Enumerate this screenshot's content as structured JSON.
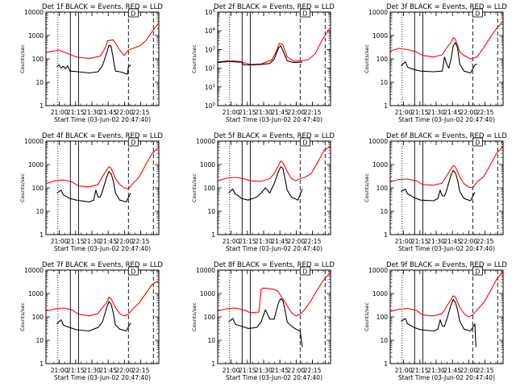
{
  "chart_data": {
    "type": "line",
    "yscale": "log",
    "ylabel": "Counts/sec",
    "xlabel": "Start Time (03-Jun-02 20:47:40)",
    "x_tick_labels": [
      "21:00",
      "21:15",
      "21:30",
      "21:45",
      "22:00",
      "22:15"
    ],
    "x_tick_minutes": [
      12.33,
      27.33,
      42.33,
      57.33,
      72.33,
      87.33
    ],
    "xlim_minutes": [
      0,
      104
    ],
    "legend_text": "BLACK = Events, RED = LLD",
    "annotation": "D",
    "vlines": [
      {
        "style": "dotted",
        "minutes": 11.0
      },
      {
        "style": "solid",
        "minutes": 22.5
      },
      {
        "style": "solid",
        "minutes": 30.0
      },
      {
        "style": "dashed",
        "minutes": 76.0
      },
      {
        "style": "dashed",
        "minutes": 99.0
      }
    ],
    "panels": [
      {
        "detector": "Det 1f",
        "ylim": [
          1,
          10000
        ],
        "ytick_labels": [
          "1",
          "10",
          "100",
          "1000",
          "10000"
        ],
        "series": [
          {
            "name": "LLD",
            "color": "#ff0000",
            "t": [
              0,
              12,
              28,
              40,
              50,
              54,
              57,
              62,
              68,
              72,
              76,
              80,
              86,
              92,
              98,
              104
            ],
            "values": [
              190,
              240,
              120,
              105,
              130,
              260,
              600,
              650,
              240,
              140,
              240,
              280,
              350,
              600,
              1500,
              3500
            ]
          },
          {
            "name": "Events",
            "color": "#000000",
            "t": [
              10,
              12,
              14,
              16,
              18,
              20,
              22,
              30,
              40,
              48,
              52,
              56,
              58,
              60,
              62,
              64,
              68,
              72,
              75,
              76,
              78
            ],
            "values": [
              45,
              55,
              40,
              48,
              38,
              50,
              30,
              28,
              25,
              28,
              50,
              180,
              380,
              350,
              100,
              30,
              28,
              25,
              22,
              45,
              55
            ]
          }
        ]
      },
      {
        "detector": "Det 2f",
        "ylim": [
          1,
          100000
        ],
        "ytick_labels": [
          "10^0",
          "10^1",
          "10^2",
          "10^3",
          "10^4",
          "10^5"
        ],
        "series": [
          {
            "name": "LLD",
            "color": "#ff0000",
            "t": [
              0,
              10,
              20,
              30,
              40,
              50,
              54,
              57,
              60,
              64,
              70,
              78,
              84,
              90,
              96,
              104
            ],
            "values": [
              220,
              250,
              230,
              160,
              170,
              280,
              800,
              2200,
              1800,
              400,
              240,
              250,
              300,
              600,
              3000,
              16000
            ]
          },
          {
            "name": "Events",
            "color": "#000000",
            "t": [
              0,
              10,
              20,
              22,
              24,
              30,
              40,
              48,
              52,
              56,
              58,
              60,
              64,
              70,
              78
            ],
            "values": [
              200,
              230,
              210,
              220,
              150,
              150,
              160,
              180,
              300,
              1200,
              1600,
              900,
              250,
              200,
              210
            ]
          }
        ]
      },
      {
        "detector": "Det 3f",
        "ylim": [
          1,
          10000
        ],
        "ytick_labels": [
          "1",
          "10",
          "100",
          "1000",
          "10000"
        ],
        "series": [
          {
            "name": "LLD",
            "color": "#ff0000",
            "t": [
              0,
              8,
              16,
              24,
              30,
              40,
              48,
              52,
              56,
              58,
              60,
              64,
              68,
              74,
              80,
              86,
              92,
              98,
              104
            ],
            "values": [
              220,
              280,
              250,
              200,
              140,
              120,
              150,
              300,
              500,
              800,
              700,
              200,
              140,
              100,
              120,
              300,
              800,
              2000,
              4000
            ]
          },
          {
            "name": "Events",
            "color": "#000000",
            "t": [
              10,
              14,
              16,
              18,
              22,
              28,
              40,
              48,
              50,
              52,
              54,
              56,
              58,
              60,
              62,
              64,
              68,
              74,
              78,
              80
            ],
            "values": [
              50,
              75,
              45,
              40,
              35,
              30,
              28,
              30,
              120,
              60,
              40,
              100,
              350,
              500,
              300,
              60,
              30,
              25,
              55,
              60
            ]
          }
        ]
      },
      {
        "detector": "Det 4f",
        "ylim": [
          1,
          10000
        ],
        "ytick_labels": [
          "1",
          "10",
          "100",
          "1000",
          "10000"
        ],
        "series": [
          {
            "name": "LLD",
            "color": "#ff0000",
            "t": [
              0,
              8,
              16,
              24,
              30,
              40,
              48,
              52,
              56,
              58,
              60,
              64,
              68,
              72,
              76,
              80,
              86,
              92,
              98,
              104
            ],
            "values": [
              150,
              200,
              220,
              180,
              120,
              110,
              140,
              300,
              600,
              800,
              700,
              250,
              140,
              100,
              90,
              150,
              300,
              1000,
              3000,
              5500
            ]
          },
          {
            "name": "Events",
            "color": "#000000",
            "t": [
              10,
              14,
              16,
              18,
              22,
              28,
              40,
              44,
              46,
              48,
              50,
              52,
              56,
              58,
              60,
              62,
              64,
              68,
              74,
              78
            ],
            "values": [
              60,
              80,
              50,
              45,
              35,
              30,
              25,
              30,
              80,
              40,
              40,
              70,
              300,
              500,
              400,
              200,
              60,
              30,
              25,
              60
            ]
          }
        ]
      },
      {
        "detector": "Det 5f",
        "ylim": [
          1,
          10000
        ],
        "ytick_labels": [
          "1",
          "10",
          "100",
          "1000",
          "10000"
        ],
        "series": [
          {
            "name": "LLD",
            "color": "#ff0000",
            "t": [
              0,
              8,
              16,
              24,
              30,
              40,
              48,
              52,
              56,
              58,
              60,
              64,
              68,
              72,
              76,
              80,
              86,
              92,
              98,
              104
            ],
            "values": [
              200,
              260,
              280,
              250,
              200,
              190,
              250,
              400,
              900,
              1400,
              1200,
              500,
              250,
              200,
              250,
              280,
              400,
              1200,
              4000,
              6000
            ]
          },
          {
            "name": "Events",
            "color": "#000000",
            "t": [
              10,
              14,
              16,
              18,
              22,
              28,
              36,
              40,
              44,
              48,
              52,
              56,
              58,
              60,
              62,
              64,
              68,
              74,
              78
            ],
            "values": [
              60,
              90,
              55,
              50,
              35,
              30,
              40,
              60,
              100,
              60,
              150,
              500,
              800,
              700,
              250,
              80,
              40,
              30,
              90
            ]
          }
        ]
      },
      {
        "detector": "Det 6f",
        "ylim": [
          1,
          10000
        ],
        "ytick_labels": [
          "1",
          "10",
          "100",
          "1000",
          "10000"
        ],
        "series": [
          {
            "name": "LLD",
            "color": "#ff0000",
            "t": [
              0,
              8,
              16,
              24,
              30,
              40,
              48,
              52,
              56,
              58,
              60,
              64,
              68,
              72,
              76,
              80,
              86,
              92,
              98,
              104
            ],
            "values": [
              180,
              230,
              240,
              200,
              140,
              130,
              160,
              330,
              650,
              900,
              800,
              300,
              150,
              110,
              100,
              180,
              300,
              900,
              3000,
              6000
            ]
          },
          {
            "name": "Events",
            "color": "#000000",
            "t": [
              10,
              14,
              16,
              18,
              22,
              28,
              40,
              44,
              46,
              48,
              50,
              52,
              56,
              58,
              60,
              62,
              64,
              68,
              74,
              78
            ],
            "values": [
              70,
              90,
              55,
              50,
              38,
              30,
              28,
              35,
              80,
              45,
              45,
              80,
              350,
              550,
              450,
              220,
              70,
              35,
              28,
              65
            ]
          }
        ]
      },
      {
        "detector": "Det 7f",
        "ylim": [
          1,
          10000
        ],
        "ytick_labels": [
          "1",
          "10",
          "100",
          "1000",
          "10000"
        ],
        "series": [
          {
            "name": "LLD",
            "color": "#ff0000",
            "t": [
              0,
              8,
              16,
              24,
              30,
              40,
              48,
              52,
              56,
              58,
              60,
              64,
              68,
              72,
              76,
              80,
              86,
              92,
              98,
              104
            ],
            "values": [
              180,
              220,
              240,
              200,
              130,
              110,
              140,
              250,
              400,
              700,
              600,
              250,
              140,
              110,
              130,
              220,
              400,
              1000,
              2500,
              3500
            ]
          },
          {
            "name": "Events",
            "color": "#000000",
            "t": [
              10,
              14,
              16,
              18,
              22,
              28,
              40,
              44,
              48,
              52,
              56,
              58,
              60,
              62,
              64,
              68,
              74,
              78
            ],
            "values": [
              50,
              75,
              45,
              40,
              35,
              28,
              25,
              30,
              35,
              60,
              250,
              450,
              350,
              150,
              45,
              30,
              25,
              55
            ]
          }
        ]
      },
      {
        "detector": "Det 8f",
        "ylim": [
          1,
          10000
        ],
        "ytick_labels": [
          "1",
          "10",
          "100",
          "1000",
          "10000"
        ],
        "series": [
          {
            "name": "LLD",
            "color": "#ff0000",
            "t": [
              0,
              8,
              16,
              24,
              30,
              38,
              40,
              42,
              48,
              52,
              56,
              58,
              60,
              64,
              68,
              72,
              76,
              80,
              86,
              92,
              98,
              104
            ],
            "values": [
              180,
              220,
              240,
              200,
              150,
              160,
              1500,
              1700,
              1600,
              1500,
              1200,
              800,
              600,
              300,
              150,
              110,
              130,
              200,
              500,
              1500,
              4000,
              8000
            ]
          },
          {
            "name": "Events",
            "color": "#000000",
            "t": [
              10,
              14,
              16,
              18,
              22,
              28,
              36,
              40,
              44,
              48,
              52,
              56,
              58,
              60,
              62,
              64,
              68,
              72,
              76,
              78
            ],
            "values": [
              60,
              85,
              50,
              45,
              40,
              32,
              35,
              60,
              200,
              80,
              80,
              400,
              600,
              500,
              200,
              60,
              40,
              30,
              25,
              5
            ]
          }
        ]
      },
      {
        "detector": "Det 9f",
        "ylim": [
          1,
          10000
        ],
        "ytick_labels": [
          "1",
          "10",
          "100",
          "1000",
          "10000"
        ],
        "series": [
          {
            "name": "LLD",
            "color": "#ff0000",
            "t": [
              0,
              8,
              16,
              24,
              30,
              40,
              48,
              52,
              56,
              58,
              60,
              64,
              68,
              72,
              76,
              80,
              86,
              92,
              98,
              104
            ],
            "values": [
              170,
              210,
              230,
              190,
              120,
              110,
              140,
              280,
              550,
              800,
              700,
              260,
              140,
              100,
              120,
              200,
              400,
              1200,
              4000,
              9000
            ]
          },
          {
            "name": "Events",
            "color": "#000000",
            "t": [
              10,
              14,
              16,
              18,
              22,
              28,
              40,
              44,
              46,
              48,
              50,
              52,
              56,
              58,
              60,
              62,
              64,
              68,
              74,
              78,
              79
            ],
            "values": [
              65,
              85,
              50,
              45,
              35,
              28,
              25,
              30,
              75,
              40,
              40,
              75,
              320,
              550,
              420,
              200,
              65,
              30,
              25,
              50,
              5
            ]
          }
        ]
      }
    ]
  }
}
